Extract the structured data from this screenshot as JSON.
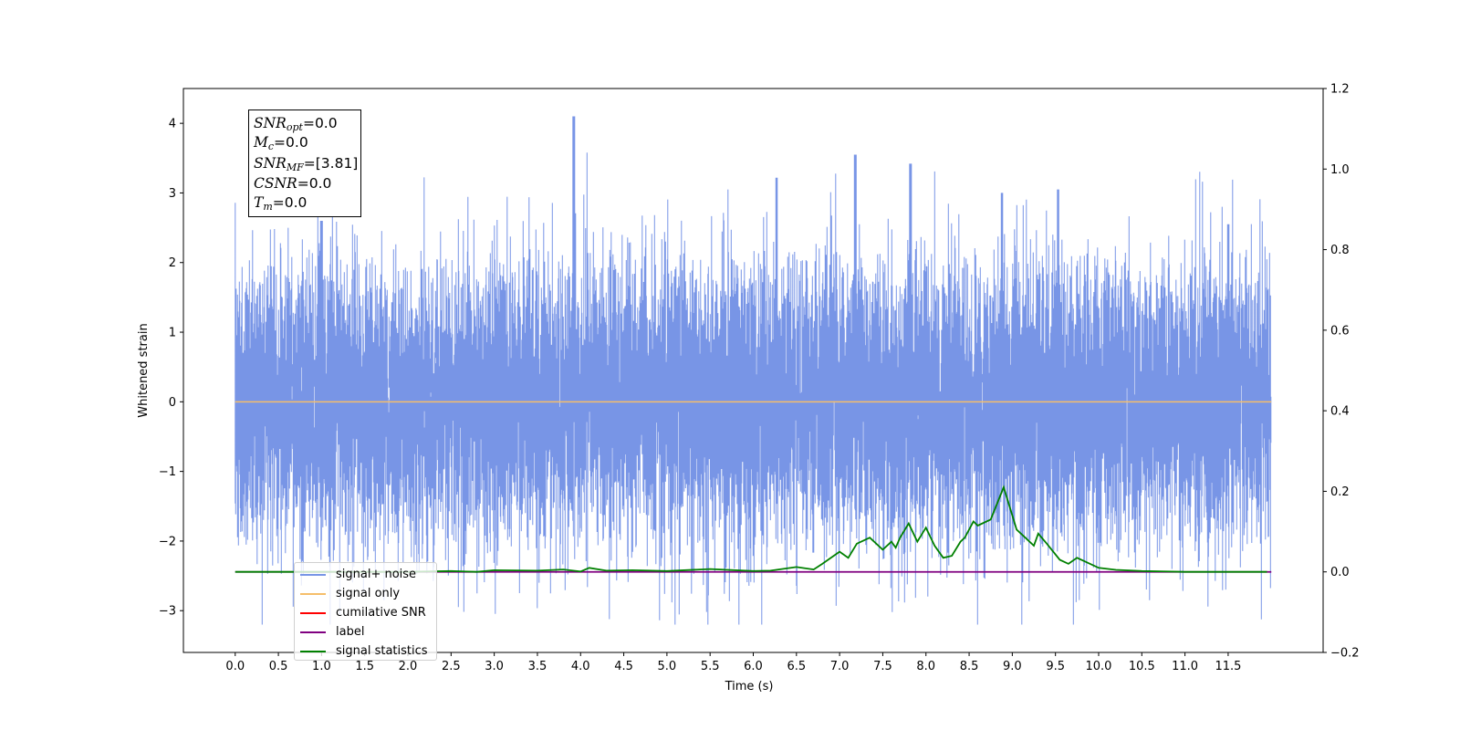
{
  "chart_data": {
    "type": "line",
    "xlabel": "Time (s)",
    "ylabel_left": "Whitened strain",
    "ylabel_right": "",
    "xlim": [
      -0.6,
      12.6
    ],
    "ylim_left": [
      -3.6,
      4.5
    ],
    "ylim_right": [
      -0.2,
      1.2
    ],
    "x_ticks": [
      "0.0",
      "0.5",
      "1.0",
      "1.5",
      "2.0",
      "2.5",
      "3.0",
      "3.5",
      "4.0",
      "4.5",
      "5.0",
      "5.5",
      "6.0",
      "6.5",
      "7.0",
      "7.5",
      "8.0",
      "8.5",
      "9.0",
      "9.5",
      "10.0",
      "10.5",
      "11.0",
      "11.5"
    ],
    "y_ticks_left": [
      "−3",
      "−2",
      "−1",
      "0",
      "1",
      "2",
      "3",
      "4"
    ],
    "y_ticks_right": [
      "−0.2",
      "0.0",
      "0.2",
      "0.4",
      "0.6",
      "0.8",
      "1.0",
      "1.2"
    ],
    "grid": false,
    "legend_placement": "lower-left",
    "series": [
      {
        "name": "signal+ noise",
        "color": "#7895e6",
        "axis": "left",
        "note": "whitened strain noise, approx Gaussian, range about -3.2 to 4.1",
        "x_range": [
          0.0,
          12.0
        ]
      },
      {
        "name": "signal only",
        "color": "#f5be6a",
        "axis": "left",
        "x": [
          0.0,
          12.0
        ],
        "y": [
          0.0,
          0.0
        ]
      },
      {
        "name": "cumilative SNR",
        "color": "#ff0000",
        "axis": "right",
        "x": [],
        "y": []
      },
      {
        "name": "label",
        "color": "#800080",
        "axis": "right",
        "x": [
          0.0,
          12.0
        ],
        "y": [
          0.0,
          0.0
        ]
      },
      {
        "name": "signal statistics",
        "color": "#008000",
        "axis": "right",
        "x": [
          0.0,
          1.0,
          2.0,
          2.5,
          2.8,
          3.0,
          3.5,
          3.8,
          4.0,
          4.1,
          4.3,
          4.6,
          5.0,
          5.5,
          6.0,
          6.2,
          6.5,
          6.7,
          6.8,
          7.0,
          7.1,
          7.2,
          7.35,
          7.5,
          7.6,
          7.65,
          7.7,
          7.8,
          7.9,
          8.0,
          8.1,
          8.2,
          8.3,
          8.4,
          8.45,
          8.55,
          8.6,
          8.75,
          8.9,
          9.0,
          9.05,
          9.15,
          9.25,
          9.3,
          9.4,
          9.55,
          9.65,
          9.75,
          9.85,
          10.0,
          10.2,
          10.5,
          11.0,
          11.5,
          11.95
        ],
        "y": [
          0.0,
          0.0,
          0.0,
          0.002,
          0.0,
          0.004,
          0.003,
          0.006,
          0.001,
          0.01,
          0.003,
          0.004,
          0.002,
          0.007,
          0.002,
          0.003,
          0.012,
          0.006,
          0.02,
          0.05,
          0.035,
          0.07,
          0.085,
          0.055,
          0.075,
          0.06,
          0.085,
          0.12,
          0.075,
          0.11,
          0.065,
          0.035,
          0.04,
          0.075,
          0.085,
          0.125,
          0.115,
          0.13,
          0.21,
          0.14,
          0.105,
          0.085,
          0.065,
          0.095,
          0.07,
          0.03,
          0.02,
          0.035,
          0.025,
          0.01,
          0.005,
          0.002,
          0.0,
          0.0,
          0.0
        ]
      }
    ]
  },
  "annotation": {
    "snr_opt_base": "SNR",
    "snr_opt_sub": "opt",
    "snr_opt_val": "=0.0",
    "mc_base": "M",
    "mc_sub": "c",
    "mc_val": "=0.0",
    "snr_mf_base": "SNR",
    "snr_mf_sub": "MF",
    "snr_mf_val": "=[3.81]",
    "csnr_base": "CSNR",
    "csnr_val": "=0.0",
    "tm_base": "T",
    "tm_sub": "m",
    "tm_val": "=0.0"
  },
  "legend": {
    "items": [
      {
        "label": "signal+ noise",
        "color": "#7895e6"
      },
      {
        "label": "signal only",
        "color": "#f5be6a"
      },
      {
        "label": "cumilative SNR",
        "color": "#ff0000"
      },
      {
        "label": "label",
        "color": "#800080"
      },
      {
        "label": "signal statistics",
        "color": "#008000"
      }
    ]
  }
}
